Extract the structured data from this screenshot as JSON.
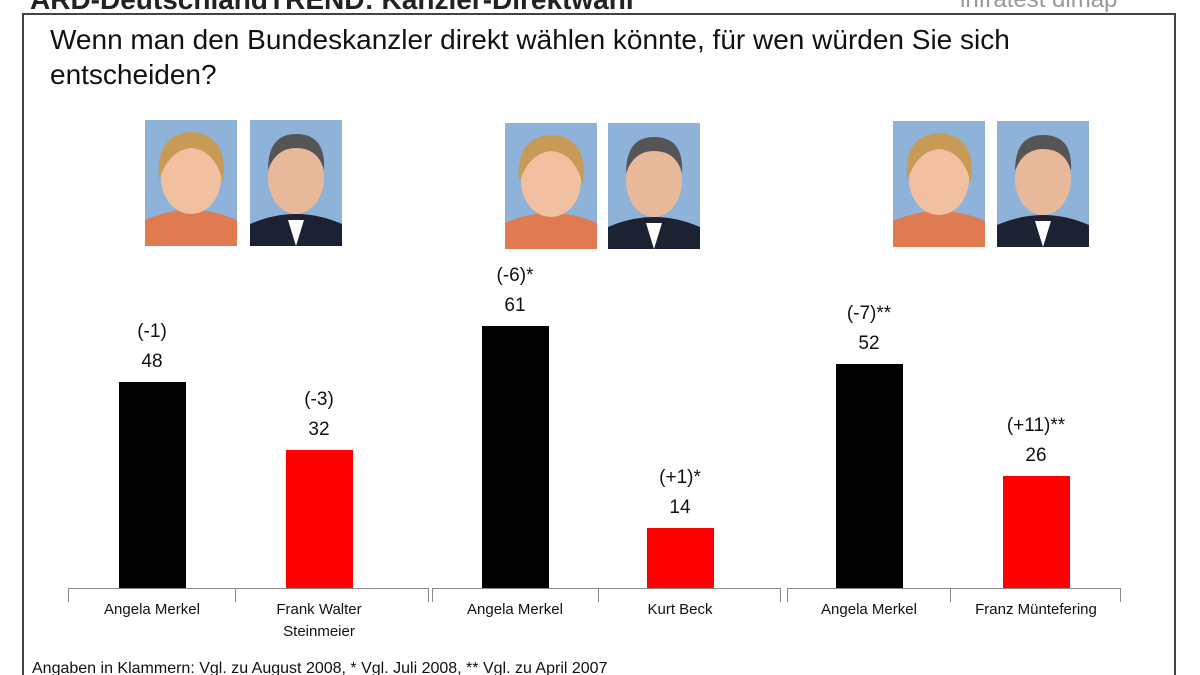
{
  "header": {
    "title": "ARD-DeutschlandTREND: Kanzler-Direktwahl",
    "source": "infratest dimap"
  },
  "question": "Wenn man den Bundeskanzler direkt wählen könnte, für wen würden Sie sich entscheiden?",
  "chart_data": [
    {
      "type": "bar",
      "categories": [
        "Angela Merkel",
        "Frank Walter Steinmeier"
      ],
      "values": [
        48,
        32
      ],
      "changes": [
        "(-1)",
        "(-3)"
      ],
      "colors": [
        "#000000",
        "#ff0000"
      ]
    },
    {
      "type": "bar",
      "categories": [
        "Angela Merkel",
        "Kurt Beck"
      ],
      "values": [
        61,
        14
      ],
      "changes": [
        "(-6)*",
        "(+1)*"
      ],
      "colors": [
        "#000000",
        "#ff0000"
      ]
    },
    {
      "type": "bar",
      "categories": [
        "Angela Merkel",
        "Franz Müntefering"
      ],
      "values": [
        52,
        26
      ],
      "changes": [
        "(-7)**",
        "(+11)**"
      ],
      "colors": [
        "#000000",
        "#ff0000"
      ]
    }
  ],
  "footnote": "Angaben in Klammern: Vgl. zu August 2008, * Vgl. Juli 2008, ** Vgl. zu April 2007"
}
